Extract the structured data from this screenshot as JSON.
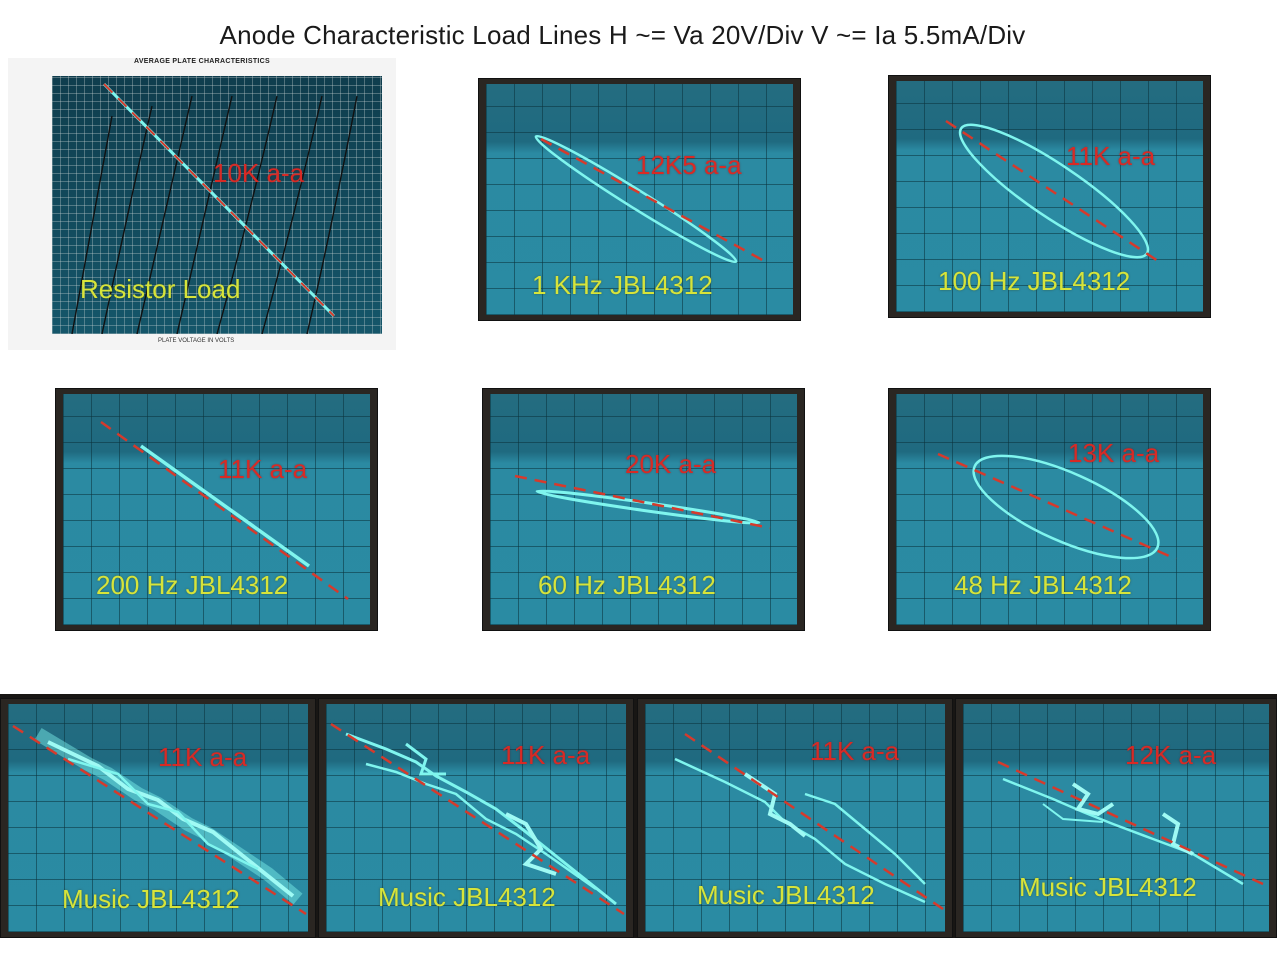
{
  "title": "Anode Characteristic Load Lines   H ~= Va 20V/Div   V ~= Ia 5.5mA/Div",
  "datasheet": {
    "header": "AVERAGE PLATE CHARACTERISTICS",
    "xlabel": "PLATE VOLTAGE IN VOLTS"
  },
  "panels": [
    {
      "load": "10K a-a",
      "condition": "Resistor Load"
    },
    {
      "load": "12K5 a-a",
      "condition": "1 KHz JBL4312"
    },
    {
      "load": "11K a-a",
      "condition": "100 Hz JBL4312"
    },
    {
      "load": "11K a-a",
      "condition": "200 Hz JBL4312"
    },
    {
      "load": "20K a-a",
      "condition": "60 Hz JBL4312"
    },
    {
      "load": "13K a-a",
      "condition": "48 Hz JBL4312"
    },
    {
      "load": "11K a-a",
      "condition": "Music JBL4312"
    },
    {
      "load": "11K a-a",
      "condition": "Music JBL4312"
    },
    {
      "load": "11K a-a",
      "condition": "Music JBL4312"
    },
    {
      "load": "12K a-a",
      "condition": "Music JBL4312"
    }
  ],
  "colors": {
    "trace": "#7ff5ee",
    "load_line": "#d63a2c",
    "load_label": "#d82a25",
    "condition_label": "#d7e43a"
  }
}
